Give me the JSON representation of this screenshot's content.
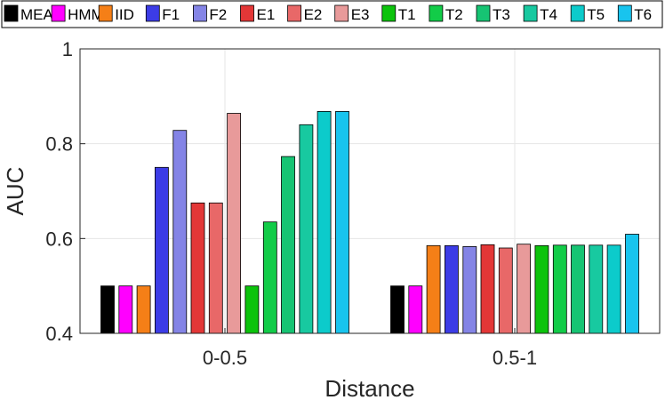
{
  "chart_data": {
    "type": "bar",
    "title": "",
    "xlabel": "Distance",
    "ylabel": "AUC",
    "ylim": [
      0.4,
      1.0
    ],
    "yticks": [
      0.4,
      0.6,
      0.8,
      1.0
    ],
    "ytick_labels": [
      "0.4",
      "0.6",
      "0.8",
      "1"
    ],
    "grid": true,
    "legend_position": "top",
    "categories": [
      "0-0.5",
      "0.5-1"
    ],
    "series": [
      {
        "name": "MEAN",
        "color": "#000000",
        "values": [
          0.5,
          0.5
        ]
      },
      {
        "name": "HMM",
        "color": "#ff00ff",
        "values": [
          0.5,
          0.5
        ]
      },
      {
        "name": "IID",
        "color": "#f57f17",
        "values": [
          0.5,
          0.585
        ]
      },
      {
        "name": "F1",
        "color": "#3c3ce6",
        "values": [
          0.75,
          0.585
        ]
      },
      {
        "name": "F2",
        "color": "#8484e6",
        "values": [
          0.828,
          0.583
        ]
      },
      {
        "name": "E1",
        "color": "#e33737",
        "values": [
          0.675,
          0.587
        ]
      },
      {
        "name": "E2",
        "color": "#e86868",
        "values": [
          0.675,
          0.58
        ]
      },
      {
        "name": "E3",
        "color": "#e89a9a",
        "values": [
          0.864,
          0.588
        ]
      },
      {
        "name": "T1",
        "color": "#0cc30c",
        "values": [
          0.5,
          0.585
        ]
      },
      {
        "name": "T2",
        "color": "#12cc48",
        "values": [
          0.635,
          0.586
        ]
      },
      {
        "name": "T3",
        "color": "#16c473",
        "values": [
          0.773,
          0.586
        ]
      },
      {
        "name": "T4",
        "color": "#18c9a0",
        "values": [
          0.84,
          0.586
        ]
      },
      {
        "name": "T5",
        "color": "#0ccbcb",
        "values": [
          0.868,
          0.586
        ]
      },
      {
        "name": "T6",
        "color": "#18c4ee",
        "values": [
          0.868,
          0.609
        ]
      }
    ]
  }
}
